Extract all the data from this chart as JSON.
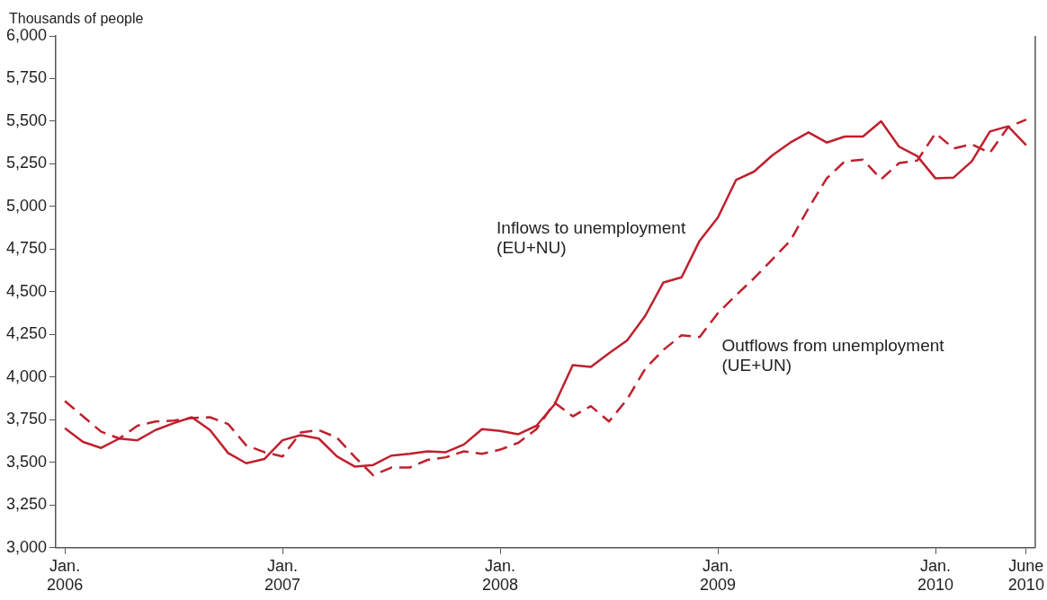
{
  "chart_data": {
    "type": "line",
    "ylabel": "Thousands of people",
    "categories": [
      "Jan. 2006",
      null,
      null,
      null,
      null,
      null,
      null,
      null,
      null,
      null,
      null,
      null,
      "Jan. 2007",
      null,
      null,
      null,
      null,
      null,
      null,
      null,
      null,
      null,
      null,
      null,
      "Jan. 2008",
      null,
      null,
      null,
      null,
      null,
      null,
      null,
      null,
      null,
      null,
      null,
      "Jan. 2009",
      null,
      null,
      null,
      null,
      null,
      null,
      null,
      null,
      null,
      null,
      null,
      "Jan. 2010",
      null,
      null,
      null,
      null,
      "June 2010"
    ],
    "series": [
      {
        "name": "Inflows to unemployment (EU+NU)",
        "color": "#c0202e",
        "line_style": "solid",
        "values": [
          3700,
          3620,
          3585,
          3640,
          3630,
          3690,
          3730,
          3765,
          3690,
          3555,
          3495,
          3520,
          3630,
          3660,
          3640,
          3535,
          3475,
          3485,
          3540,
          3550,
          3565,
          3560,
          3605,
          3695,
          3685,
          3665,
          3715,
          3840,
          4070,
          4060,
          4140,
          4215,
          4360,
          4555,
          4585,
          4800,
          4935,
          5155,
          5205,
          5300,
          5375,
          5435,
          5375,
          5410,
          5410,
          5500,
          5350,
          5295,
          5165,
          5170,
          5265,
          5440,
          5470,
          5360
        ]
      },
      {
        "name": "Outflows from unemployment (UE+UN)",
        "color": "#c0202e",
        "line_style": "dashed",
        "values": [
          3860,
          3770,
          3680,
          3640,
          3715,
          3740,
          3745,
          3760,
          3765,
          3725,
          3600,
          3560,
          3535,
          3675,
          3690,
          3645,
          3530,
          3425,
          3470,
          3470,
          3515,
          3530,
          3565,
          3550,
          3575,
          3615,
          3695,
          3850,
          3770,
          3830,
          3740,
          3870,
          4050,
          4160,
          4245,
          4235,
          4375,
          4480,
          4580,
          4690,
          4800,
          4990,
          5165,
          5265,
          5275,
          5160,
          5255,
          5270,
          5430,
          5340,
          5365,
          5315,
          5465,
          5510
        ]
      }
    ],
    "ylim": [
      3000,
      6000
    ],
    "yticks": [
      {
        "value": 3000,
        "label": "3,000"
      },
      {
        "value": 3250,
        "label": "3,250"
      },
      {
        "value": 3500,
        "label": "3,500"
      },
      {
        "value": 3750,
        "label": "3,750"
      },
      {
        "value": 4000,
        "label": "4,000"
      },
      {
        "value": 4250,
        "label": "4,250"
      },
      {
        "value": 4500,
        "label": "4,500"
      },
      {
        "value": 4750,
        "label": "4,750"
      },
      {
        "value": 5000,
        "label": "5,000"
      },
      {
        "value": 5250,
        "label": "5,250"
      },
      {
        "value": 5500,
        "label": "5,500"
      },
      {
        "value": 5750,
        "label": "5,750"
      },
      {
        "value": 6000,
        "label": "6,000"
      }
    ],
    "grid": false,
    "legend": false,
    "marker": "none"
  }
}
